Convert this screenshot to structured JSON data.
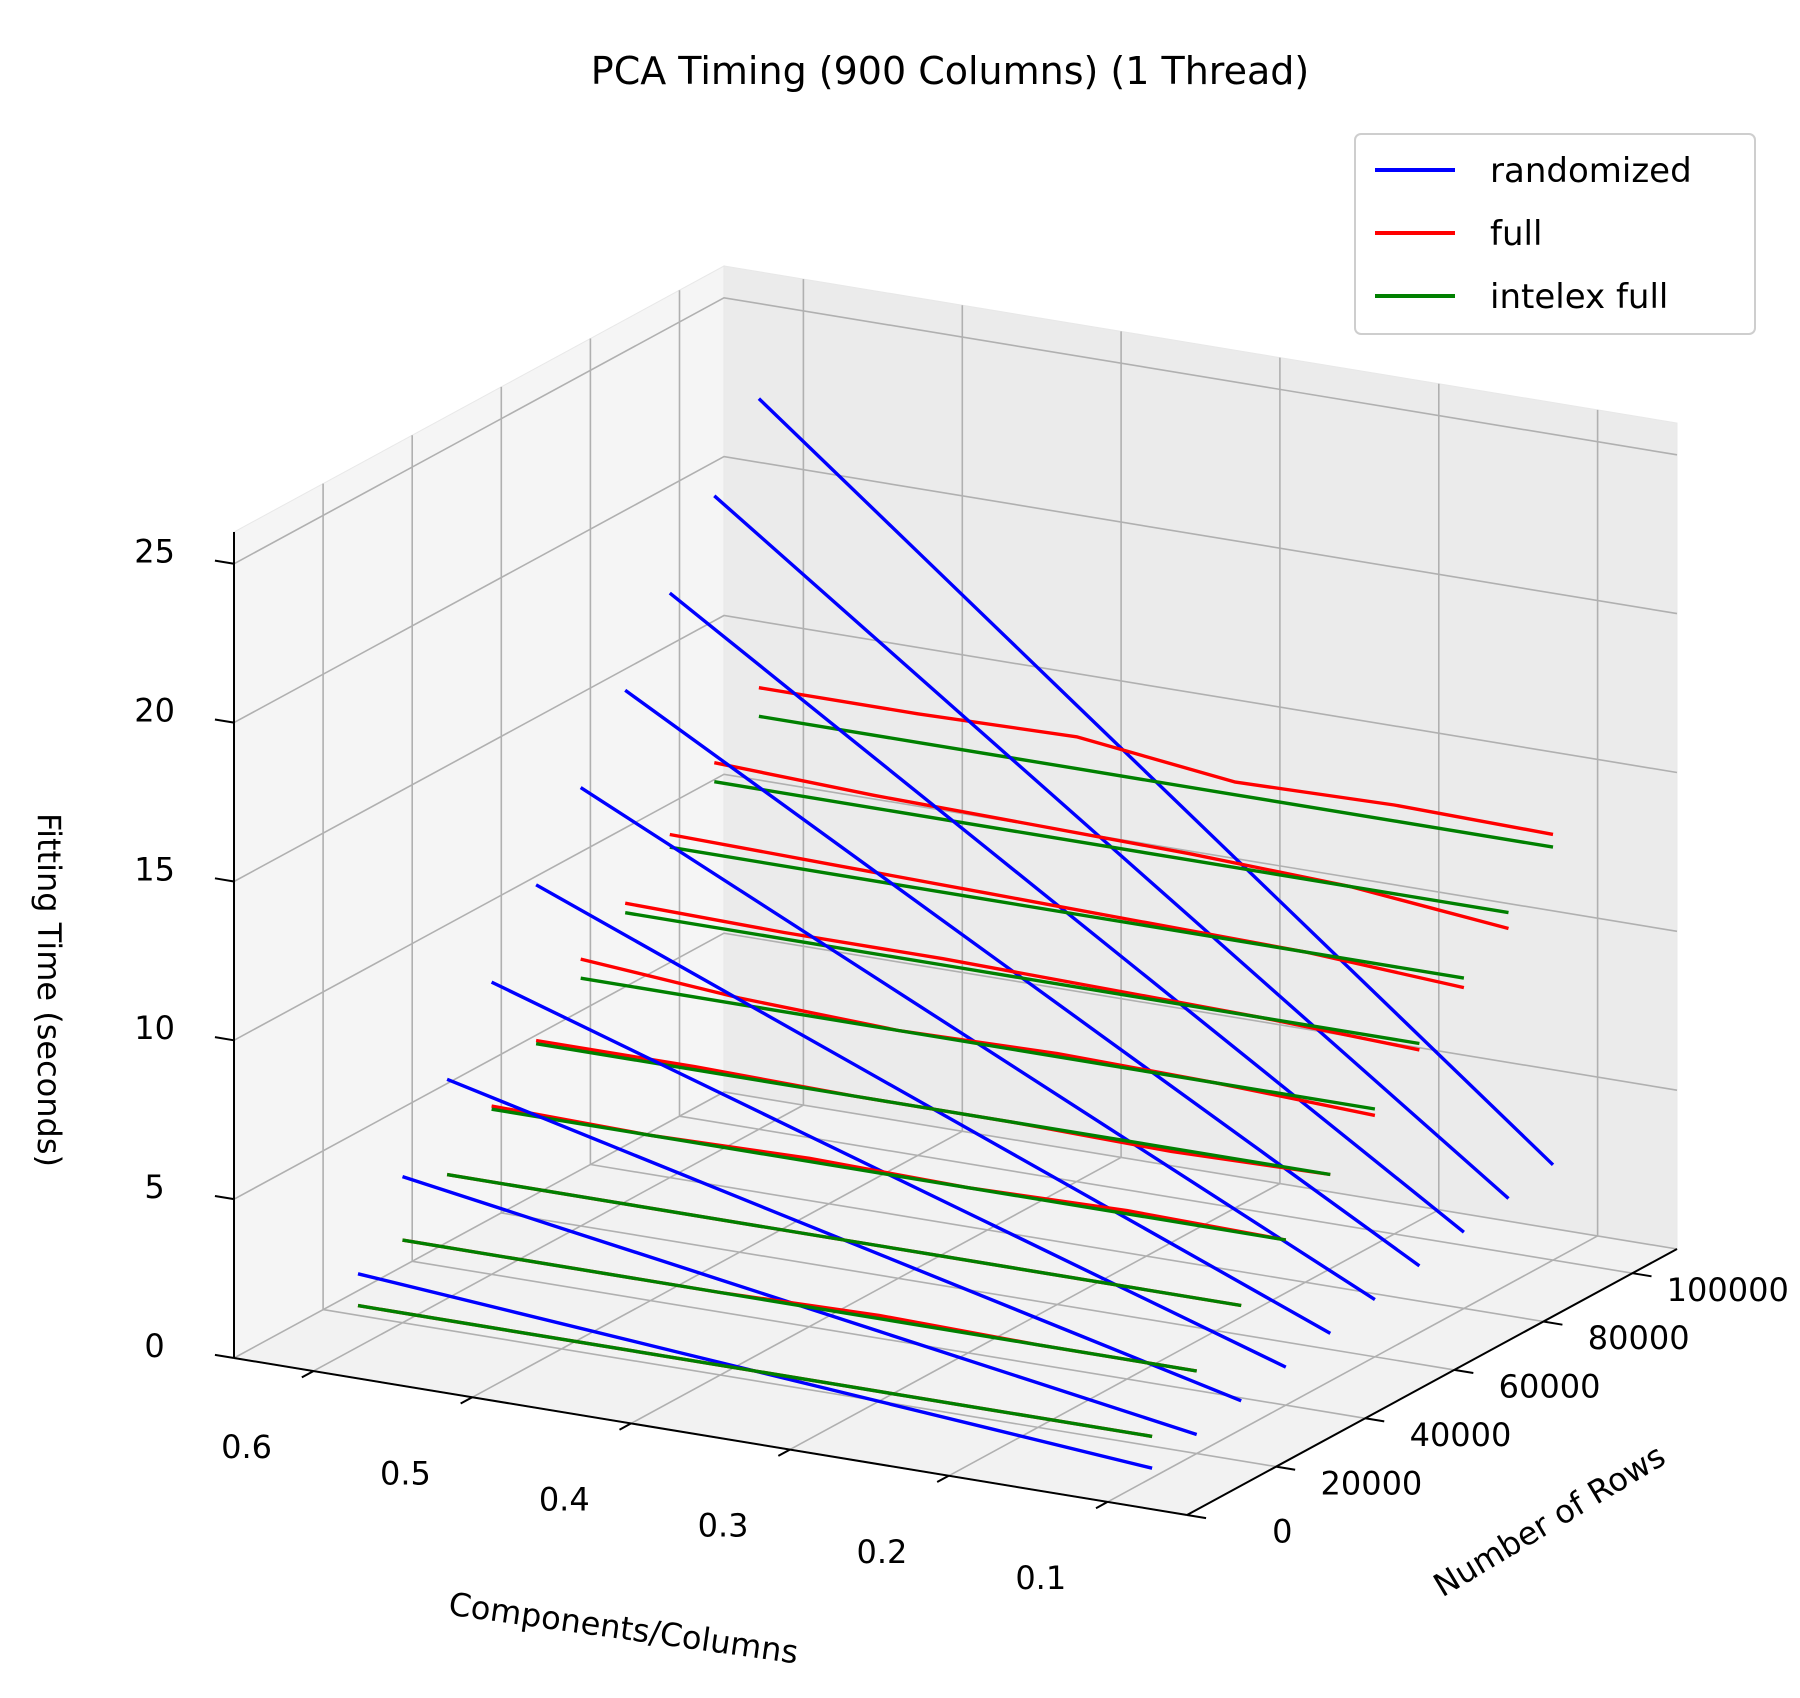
{
  "chart_data": {
    "type": "line3d",
    "title": "PCA Timing (900 Columns) (1 Thread)",
    "xlabel": "Components/Columns",
    "ylabel": "Number of Rows",
    "zlabel": "Fitting Time (seconds)",
    "xlim": [
      0.05,
      0.65
    ],
    "ylim": [
      0,
      110000
    ],
    "zlim": [
      0,
      26
    ],
    "x_ticks": [
      "0.1",
      "0.2",
      "0.3",
      "0.4",
      "0.5",
      "0.6"
    ],
    "y_ticks": [
      "0",
      "20000",
      "40000",
      "60000",
      "80000",
      "100000"
    ],
    "z_ticks": [
      "0",
      "5",
      "10",
      "15",
      "20",
      "25"
    ],
    "grid": true,
    "legend_position": "top-right",
    "rows": [
      10000,
      20000,
      30000,
      40000,
      50000,
      60000,
      70000,
      80000,
      90000,
      100000
    ],
    "series": [
      {
        "name": "randomized",
        "color": "#0000ff",
        "points_per_row": [
          0.1,
          0.2,
          0.3,
          0.4,
          0.5,
          0.6
        ],
        "z": [
          [
            0.3,
            0.7,
            1.1,
            1.5,
            1.9,
            2.3
          ],
          [
            0.6,
            1.4,
            2.2,
            3.0,
            3.8,
            4.6
          ],
          [
            0.9,
            2.1,
            3.3,
            4.5,
            5.7,
            6.9
          ],
          [
            1.2,
            2.8,
            4.4,
            6.0,
            7.6,
            9.2
          ],
          [
            1.5,
            3.5,
            5.5,
            7.5,
            9.5,
            11.5
          ],
          [
            1.8,
            4.2,
            6.6,
            9.0,
            11.4,
            13.8
          ],
          [
            2.1,
            4.9,
            7.7,
            10.5,
            13.3,
            16.1
          ],
          [
            2.4,
            5.6,
            8.8,
            12.0,
            15.2,
            18.4
          ],
          [
            2.7,
            6.3,
            9.9,
            13.5,
            17.1,
            20.7
          ],
          [
            3.0,
            7.0,
            11.0,
            15.0,
            19.0,
            23.0
          ]
        ]
      },
      {
        "name": "full",
        "color": "#ff0000",
        "points_per_row": [
          0.1,
          0.2,
          0.3,
          0.4,
          0.5,
          0.6
        ],
        "z": [
          [
            1.3,
            1.3,
            1.3,
            1.3,
            1.3,
            1.3
          ],
          [
            2.6,
            2.6,
            2.7,
            2.6,
            2.6,
            2.6
          ],
          [
            3.9,
            3.9,
            3.9,
            3.9,
            3.9,
            3.9
          ],
          [
            5.2,
            5.3,
            5.2,
            5.3,
            5.2,
            5.3
          ],
          [
            6.5,
            6.4,
            6.5,
            6.5,
            6.6,
            6.6
          ],
          [
            7.6,
            7.8,
            7.9,
            7.8,
            8.0,
            8.4
          ],
          [
            8.9,
            9.1,
            9.2,
            9.3,
            9.3,
            9.4
          ],
          [
            10.1,
            10.4,
            10.5,
            10.6,
            10.7,
            10.8
          ],
          [
            11.2,
            11.7,
            11.9,
            12.0,
            12.1,
            12.3
          ],
          [
            13.4,
            13.5,
            13.4,
            14.0,
            13.9,
            13.9
          ]
        ]
      },
      {
        "name": "intelex full",
        "color": "#008000",
        "points_per_row": [
          0.1,
          0.2,
          0.3,
          0.4,
          0.5,
          0.6
        ],
        "z": [
          [
            1.3,
            1.3,
            1.3,
            1.3,
            1.3,
            1.3
          ],
          [
            2.6,
            2.6,
            2.6,
            2.6,
            2.6,
            2.6
          ],
          [
            3.9,
            3.9,
            3.9,
            3.9,
            3.9,
            3.9
          ],
          [
            5.2,
            5.2,
            5.2,
            5.2,
            5.2,
            5.2
          ],
          [
            6.5,
            6.5,
            6.5,
            6.5,
            6.5,
            6.5
          ],
          [
            7.8,
            7.8,
            7.8,
            7.8,
            7.8,
            7.8
          ],
          [
            9.1,
            9.1,
            9.1,
            9.1,
            9.1,
            9.1
          ],
          [
            10.4,
            10.4,
            10.4,
            10.4,
            10.4,
            10.4
          ],
          [
            11.7,
            11.7,
            11.7,
            11.7,
            11.7,
            11.7
          ],
          [
            13.0,
            13.0,
            13.0,
            13.0,
            13.0,
            13.0
          ]
        ]
      }
    ]
  }
}
